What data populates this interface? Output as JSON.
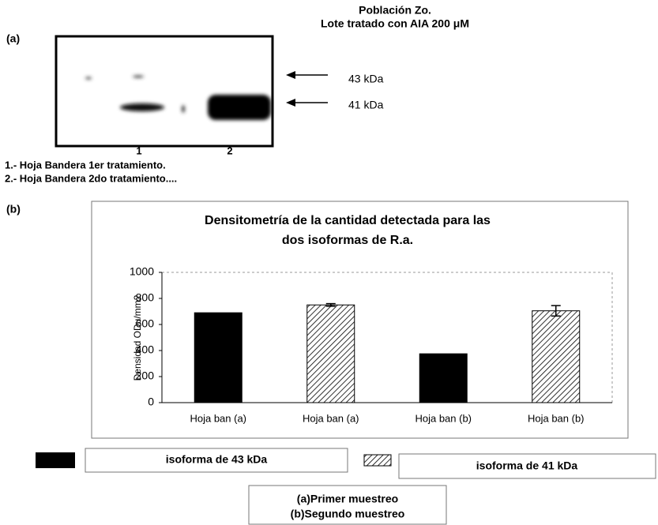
{
  "header": {
    "title": "Población Zo.",
    "subtitle": "Lote tratado con AIA 200 μM"
  },
  "panel_a": {
    "label": "(a)",
    "bands": [
      "43 kDa",
      "41 kDa"
    ],
    "lanes": [
      "1",
      "2"
    ],
    "notes": [
      "1.- Hoja Bandera 1er tratamiento.",
      "2.- Hoja Bandera 2do tratamiento...."
    ]
  },
  "panel_b": {
    "label": "(b)"
  },
  "chart_data": {
    "type": "bar",
    "title": [
      "Densitometría de  la cantidad detectada para las",
      "dos isoformas de R.a."
    ],
    "y_label": "Densidad ODu/mm2",
    "categories": [
      "Hoja ban (a)",
      "Hoja ban (a)",
      "Hoja ban (b)",
      "Hoja ban (b)"
    ],
    "series": [
      {
        "name": "isoforma de 43 kDa",
        "color": "#000000",
        "hatch": false,
        "values": [
          690,
          null,
          375,
          null
        ],
        "errors": [
          null,
          null,
          null,
          null
        ]
      },
      {
        "name": "isoforma de 41 kDa",
        "color": "#000000",
        "hatch": true,
        "values": [
          null,
          750,
          null,
          705
        ],
        "errors": [
          null,
          10,
          null,
          40
        ]
      }
    ],
    "ylim": [
      0,
      1000
    ],
    "yticks": [
      0,
      200,
      400,
      600,
      800,
      1000
    ],
    "grid": false,
    "legend_note": [
      "(a)Primer muestreo",
      "(b)Segundo muestreo"
    ]
  }
}
